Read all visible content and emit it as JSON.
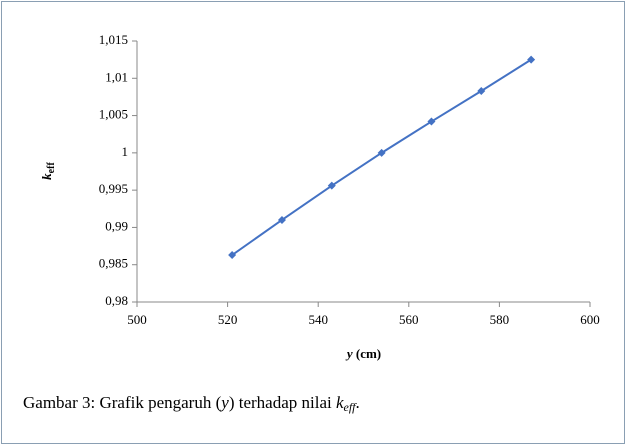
{
  "chart_data": {
    "type": "line",
    "x": [
      521,
      532,
      543,
      554,
      565,
      576,
      587
    ],
    "series": [
      {
        "name": "keff",
        "color": "#4472c4",
        "values": [
          0.9863,
          0.991,
          0.9956,
          1.0,
          1.0042,
          1.0083,
          1.0125
        ]
      }
    ],
    "xlim": [
      500,
      600
    ],
    "xticks": [
      500,
      520,
      540,
      560,
      580,
      600
    ],
    "ylim": [
      0.98,
      1.015
    ],
    "yticks": [
      {
        "value": 0.98,
        "label": "0,98"
      },
      {
        "value": 0.985,
        "label": "0,985"
      },
      {
        "value": 0.99,
        "label": "0,99"
      },
      {
        "value": 0.995,
        "label": "0,995"
      },
      1,
      {
        "value": 1.005,
        "label": "1,005"
      },
      {
        "value": 1.01,
        "label": "1,01"
      },
      {
        "value": 1.015,
        "label": "1,015"
      }
    ],
    "ylabel": "k",
    "ylabel_sub": "eff",
    "xlabel_var": "y",
    "xlabel_unit": "(cm)",
    "grid": false,
    "marker": "diamond"
  },
  "caption": {
    "prefix": "Gambar 3: Grafik pengaruh (",
    "var": "y",
    "middle": ") terhadap nilai ",
    "k": "k",
    "sub": "eff",
    "end": "."
  }
}
